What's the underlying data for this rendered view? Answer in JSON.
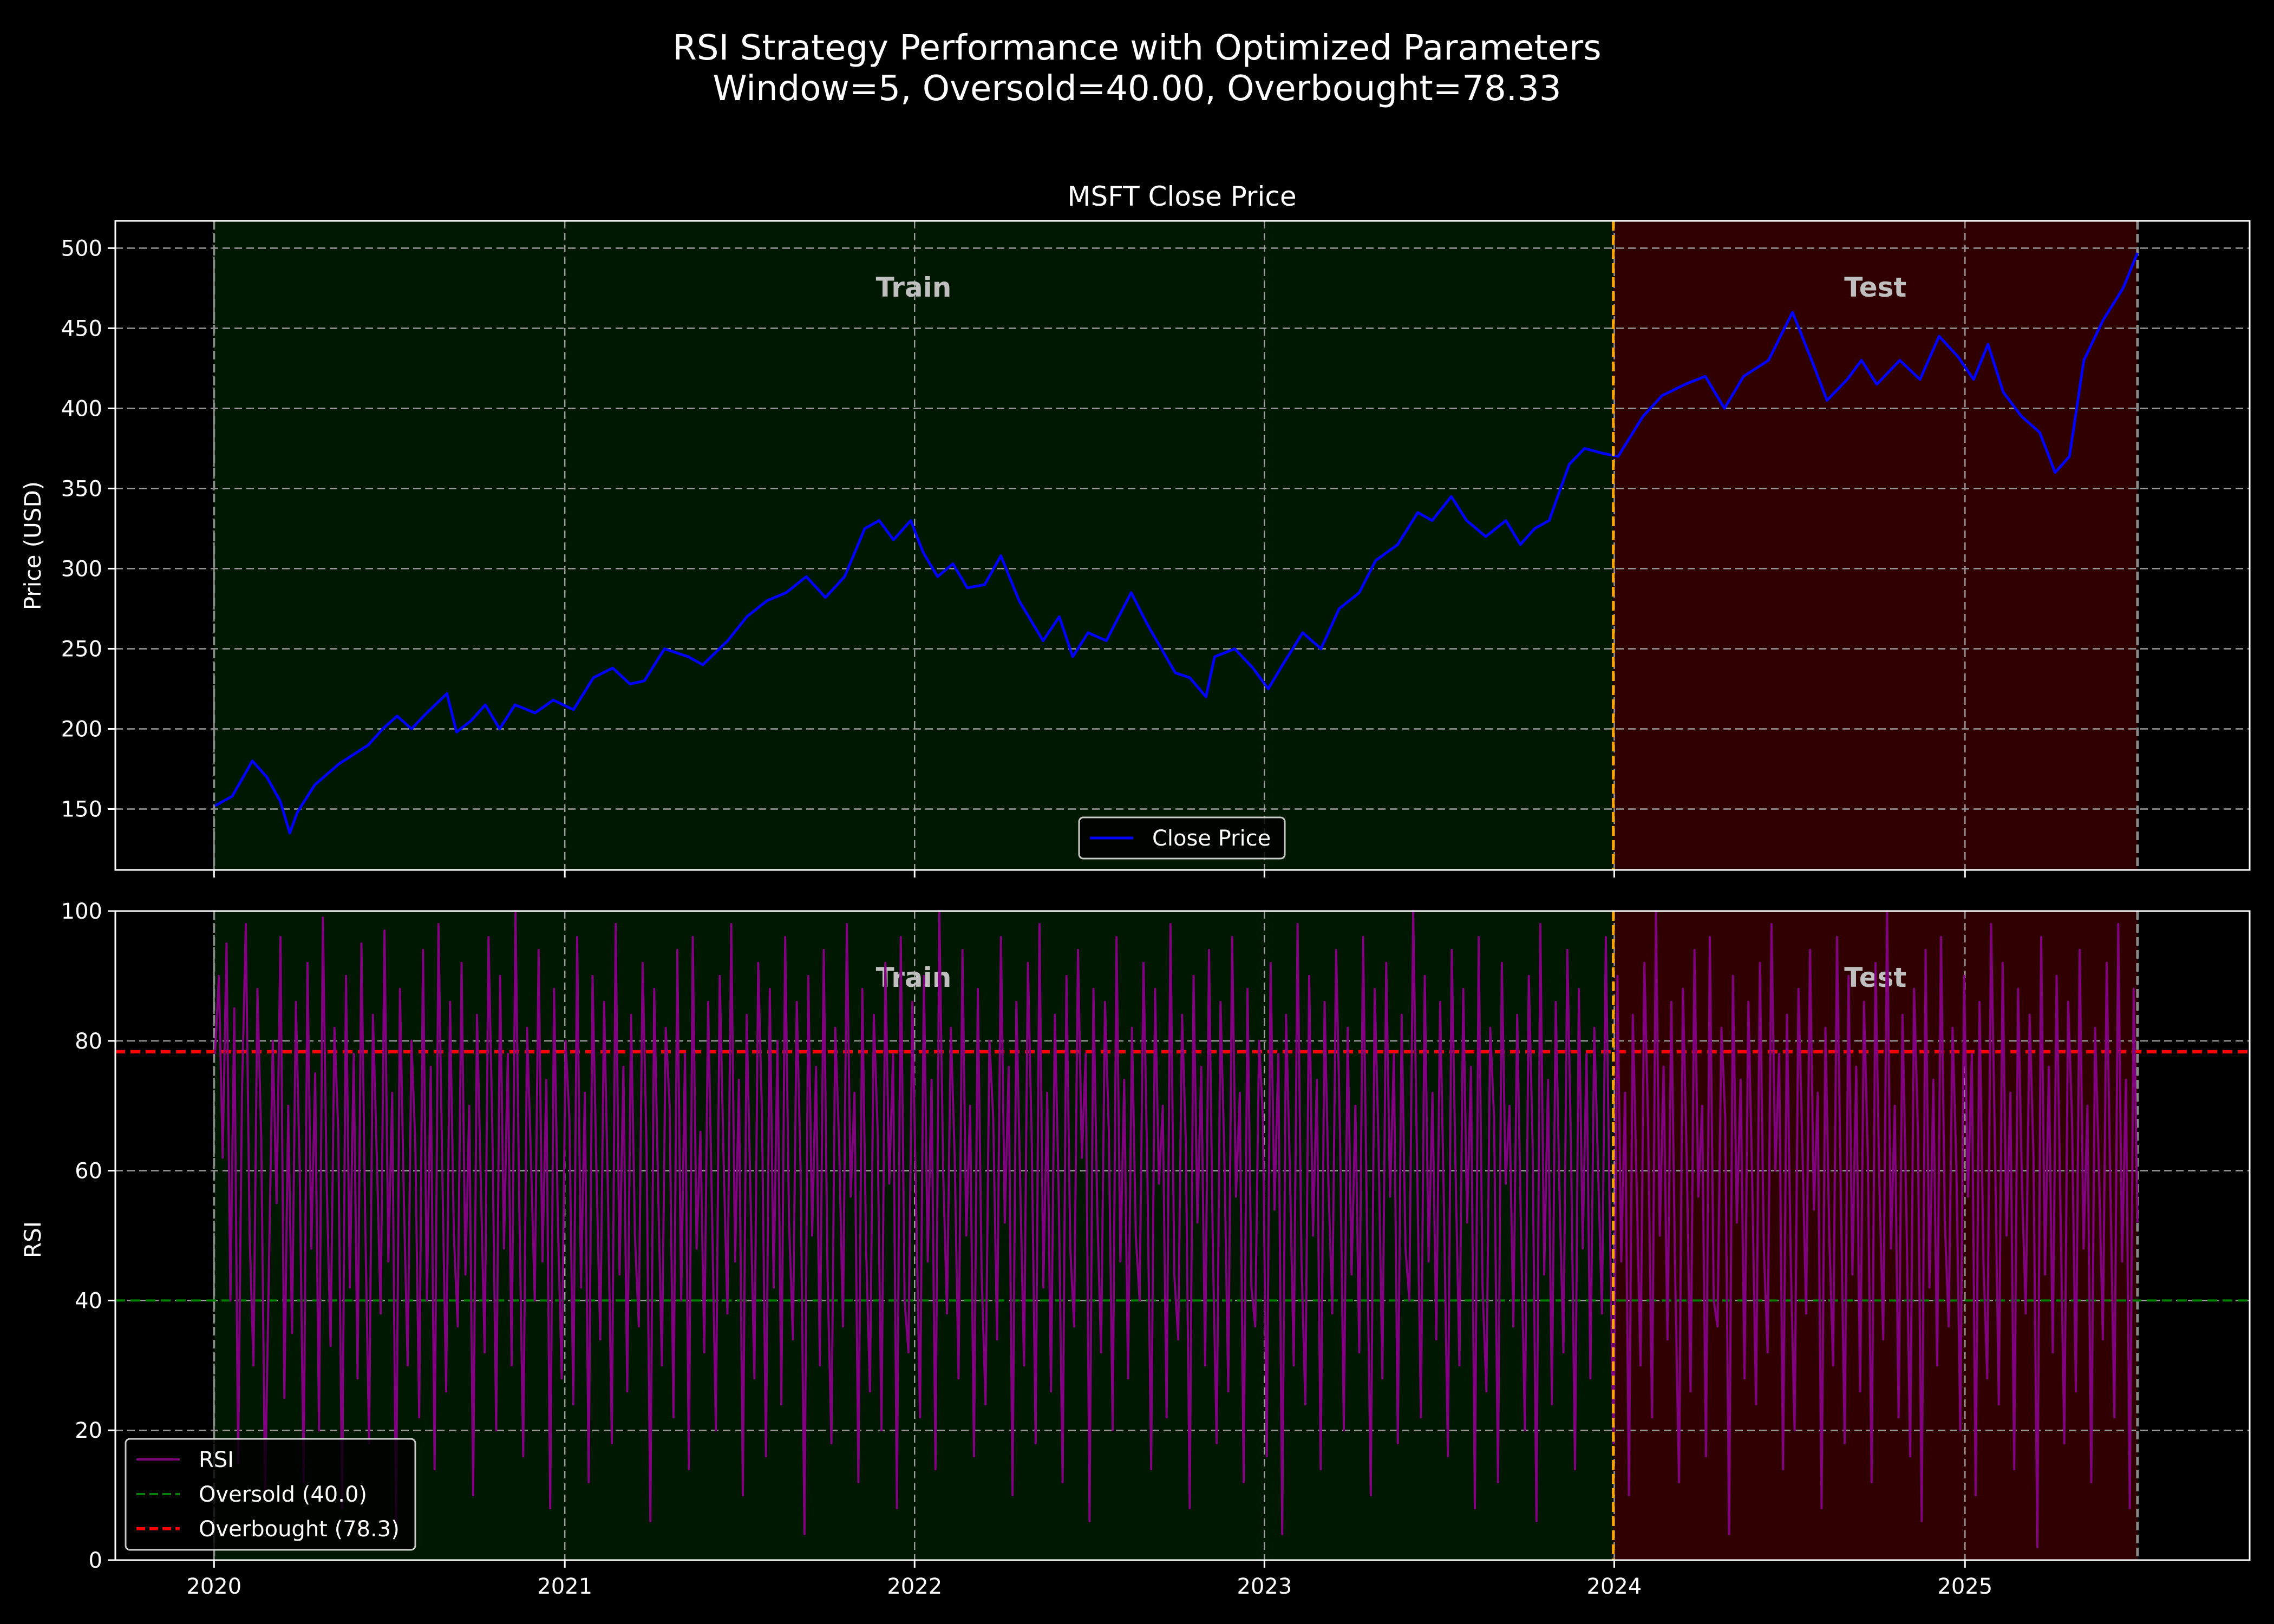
{
  "title": [
    "RSI Strategy Performance with Optimized Parameters",
    "Window=5, Oversold=40.00, Overbought=78.33"
  ],
  "colors": {
    "background": "#000000",
    "price_line": "#0000ff",
    "rsi_line": "#800080",
    "oversold": "#008000",
    "overbought": "#ff0000",
    "train_region": "#001800",
    "test_region": "#300000",
    "split_line": "#ffa500",
    "end_line": "#888888"
  },
  "chart_data": [
    {
      "type": "line",
      "title": "MSFT Close Price",
      "xlabel": "",
      "ylabel": "Price (USD)",
      "xlim": [
        "2019-09-20",
        "2025-10-25"
      ],
      "ylim": [
        112,
        517
      ],
      "yticks": [
        150,
        200,
        250,
        300,
        350,
        400,
        450,
        500
      ],
      "xticks": [
        "2020",
        "2021",
        "2022",
        "2023",
        "2024",
        "2025"
      ],
      "grid": true,
      "regions": [
        {
          "label": "Train",
          "start": "2020-01-01",
          "end": "2023-12-31"
        },
        {
          "label": "Test",
          "start": "2023-12-31",
          "end": "2025-06-30"
        }
      ],
      "legend": {
        "position": "lower-center",
        "entries": [
          "Close Price"
        ]
      },
      "series": [
        {
          "name": "Close Price",
          "points": [
            [
              "2020-01-02",
              152
            ],
            [
              "2020-01-20",
              158
            ],
            [
              "2020-02-10",
              180
            ],
            [
              "2020-02-25",
              170
            ],
            [
              "2020-03-10",
              155
            ],
            [
              "2020-03-20",
              135
            ],
            [
              "2020-03-28",
              148
            ],
            [
              "2020-04-15",
              165
            ],
            [
              "2020-05-10",
              178
            ],
            [
              "2020-06-10",
              190
            ],
            [
              "2020-06-25",
              200
            ],
            [
              "2020-07-10",
              208
            ],
            [
              "2020-07-25",
              200
            ],
            [
              "2020-08-10",
              210
            ],
            [
              "2020-08-31",
              222
            ],
            [
              "2020-09-10",
              198
            ],
            [
              "2020-09-25",
              205
            ],
            [
              "2020-10-10",
              215
            ],
            [
              "2020-10-25",
              200
            ],
            [
              "2020-11-10",
              215
            ],
            [
              "2020-12-01",
              210
            ],
            [
              "2020-12-20",
              218
            ],
            [
              "2021-01-10",
              212
            ],
            [
              "2021-01-31",
              232
            ],
            [
              "2021-02-20",
              238
            ],
            [
              "2021-03-10",
              228
            ],
            [
              "2021-03-25",
              230
            ],
            [
              "2021-04-15",
              250
            ],
            [
              "2021-05-10",
              245
            ],
            [
              "2021-05-25",
              240
            ],
            [
              "2021-06-20",
              255
            ],
            [
              "2021-07-10",
              270
            ],
            [
              "2021-07-31",
              280
            ],
            [
              "2021-08-20",
              285
            ],
            [
              "2021-09-10",
              295
            ],
            [
              "2021-09-30",
              282
            ],
            [
              "2021-10-20",
              295
            ],
            [
              "2021-11-10",
              325
            ],
            [
              "2021-11-25",
              330
            ],
            [
              "2021-12-10",
              318
            ],
            [
              "2021-12-28",
              330
            ],
            [
              "2022-01-10",
              310
            ],
            [
              "2022-01-25",
              295
            ],
            [
              "2022-02-10",
              303
            ],
            [
              "2022-02-25",
              288
            ],
            [
              "2022-03-15",
              290
            ],
            [
              "2022-04-01",
              308
            ],
            [
              "2022-04-20",
              280
            ],
            [
              "2022-05-15",
              255
            ],
            [
              "2022-06-01",
              270
            ],
            [
              "2022-06-15",
              245
            ],
            [
              "2022-07-01",
              260
            ],
            [
              "2022-07-20",
              255
            ],
            [
              "2022-08-15",
              285
            ],
            [
              "2022-09-01",
              265
            ],
            [
              "2022-09-30",
              235
            ],
            [
              "2022-10-15",
              232
            ],
            [
              "2022-11-01",
              220
            ],
            [
              "2022-11-10",
              245
            ],
            [
              "2022-12-01",
              250
            ],
            [
              "2022-12-20",
              238
            ],
            [
              "2023-01-05",
              225
            ],
            [
              "2023-01-20",
              240
            ],
            [
              "2023-02-10",
              260
            ],
            [
              "2023-03-01",
              250
            ],
            [
              "2023-03-20",
              275
            ],
            [
              "2023-04-10",
              285
            ],
            [
              "2023-04-27",
              305
            ],
            [
              "2023-05-20",
              315
            ],
            [
              "2023-06-10",
              335
            ],
            [
              "2023-06-25",
              330
            ],
            [
              "2023-07-15",
              345
            ],
            [
              "2023-07-31",
              330
            ],
            [
              "2023-08-20",
              320
            ],
            [
              "2023-09-10",
              330
            ],
            [
              "2023-09-25",
              315
            ],
            [
              "2023-10-10",
              325
            ],
            [
              "2023-10-25",
              330
            ],
            [
              "2023-11-15",
              365
            ],
            [
              "2023-12-01",
              375
            ],
            [
              "2023-12-20",
              372
            ],
            [
              "2024-01-05",
              370
            ],
            [
              "2024-01-31",
              395
            ],
            [
              "2024-02-20",
              408
            ],
            [
              "2024-03-15",
              415
            ],
            [
              "2024-04-05",
              420
            ],
            [
              "2024-04-25",
              400
            ],
            [
              "2024-05-15",
              420
            ],
            [
              "2024-06-10",
              430
            ],
            [
              "2024-07-05",
              460
            ],
            [
              "2024-07-25",
              430
            ],
            [
              "2024-08-10",
              405
            ],
            [
              "2024-08-31",
              418
            ],
            [
              "2024-09-15",
              430
            ],
            [
              "2024-10-01",
              415
            ],
            [
              "2024-10-25",
              430
            ],
            [
              "2024-11-15",
              418
            ],
            [
              "2024-12-05",
              445
            ],
            [
              "2024-12-25",
              432
            ],
            [
              "2025-01-10",
              418
            ],
            [
              "2025-01-25",
              440
            ],
            [
              "2025-02-10",
              410
            ],
            [
              "2025-03-01",
              395
            ],
            [
              "2025-03-20",
              385
            ],
            [
              "2025-04-05",
              360
            ],
            [
              "2025-04-20",
              370
            ],
            [
              "2025-05-05",
              430
            ],
            [
              "2025-05-25",
              455
            ],
            [
              "2025-06-15",
              475
            ],
            [
              "2025-06-30",
              497
            ]
          ]
        }
      ]
    },
    {
      "type": "line",
      "title": "",
      "xlabel": "",
      "ylabel": "RSI",
      "xlim": [
        "2019-09-20",
        "2025-10-25"
      ],
      "ylim": [
        0,
        100
      ],
      "yticks": [
        0,
        20,
        40,
        60,
        80,
        100
      ],
      "xticks": [
        "2020",
        "2021",
        "2022",
        "2023",
        "2024",
        "2025"
      ],
      "grid": true,
      "regions": [
        {
          "label": "Train",
          "start": "2020-01-01",
          "end": "2023-12-31"
        },
        {
          "label": "Test",
          "start": "2023-12-31",
          "end": "2025-06-30"
        }
      ],
      "legend": {
        "position": "lower-left",
        "entries": [
          "RSI",
          "Oversold (40.0)",
          "Overbought (78.3)"
        ]
      },
      "hlines": [
        {
          "name": "Oversold (40.0)",
          "y": 40.0
        },
        {
          "name": "Overbought (78.3)",
          "y": 78.33
        }
      ],
      "series": [
        {
          "name": "RSI",
          "x_start": "2020-01-02",
          "x_end": "2025-06-30",
          "values": [
            78,
            90,
            62,
            95,
            40,
            85,
            15,
            72,
            98,
            50,
            30,
            88,
            65,
            10,
            45,
            80,
            55,
            96,
            25,
            70,
            35,
            86,
            60,
            12,
            92,
            48,
            75,
            20,
            99,
            58,
            33,
            82,
            66,
            8,
            90,
            42,
            78,
            28,
            95,
            52,
            18,
            84,
            62,
            38,
            97,
            46,
            72,
            5,
            88,
            56,
            30,
            80,
            64,
            22,
            94,
            40,
            76,
            14,
            98,
            60,
            26,
            86,
            50,
            36,
            92,
            44,
            70,
            10,
            84,
            58,
            32,
            96,
            66,
            20,
            90,
            48,
            78,
            30,
            100,
            54,
            16,
            82,
            62,
            40,
            94,
            46,
            74,
            8,
            88,
            52,
            28,
            80,
            68,
            24,
            96,
            42,
            72,
            12,
            90,
            60,
            34,
            86,
            56,
            18,
            98,
            44,
            76,
            26,
            84,
            50,
            36,
            92,
            64,
            6,
            88,
            58,
            30,
            82,
            70,
            22,
            94,
            40,
            78,
            14,
            96,
            48,
            66,
            32,
            86,
            54,
            20,
            90,
            62,
            38,
            98,
            46,
            74,
            10,
            84,
            56,
            28,
            92,
            68,
            16,
            88,
            42,
            80,
            24,
            96,
            52,
            34,
            86,
            60,
            4,
            90,
            50,
            76,
            30,
            94,
            44,
            18,
            82,
            64,
            36,
            98,
            56,
            72,
            12,
            88,
            48,
            26,
            84,
            66,
            20,
            92,
            58,
            78,
            8,
            96,
            40,
            32,
            86,
            54,
            22,
            90,
            46,
            74,
            14,
            100,
            60,
            38,
            82,
            62,
            28,
            94,
            50,
            70,
            16,
            88,
            44,
            24,
            80,
            68,
            34,
            96,
            52,
            76,
            10,
            86,
            58,
            30,
            92,
            64,
            18,
            98,
            42,
            72,
            26,
            84,
            56,
            12,
            90,
            48,
            36,
            94,
            62,
            78,
            6,
            88,
            54,
            32,
            86,
            66,
            20,
            96,
            46,
            74,
            28,
            82,
            50,
            40,
            92,
            60,
            14,
            88,
            58,
            70,
            22,
            98,
            44,
            34,
            84,
            64,
            8,
            90,
            52,
            76,
            30,
            94,
            48,
            18,
            86,
            62,
            26,
            96,
            56,
            72,
            12,
            88,
            42,
            36,
            80,
            68,
            16,
            92,
            54,
            78,
            4,
            84,
            60,
            30,
            98,
            46,
            24,
            90,
            50,
            74,
            14,
            86,
            58,
            38,
            94,
            66,
            20,
            82,
            44,
            70,
            32,
            96,
            52,
            10,
            88,
            64,
            28,
            92,
            56,
            78,
            18,
            84,
            48,
            40,
            100,
            62,
            22,
            90,
            46,
            72,
            34,
            86,
            54,
            16,
            94,
            60,
            30,
            88,
            52,
            76,
            8,
            96,
            42,
            26,
            82,
            68,
            12,
            92,
            58,
            70,
            36,
            84,
            50,
            20,
            90,
            64,
            6,
            98,
            44,
            74,
            24,
            86,
            56,
            32,
            94,
            62,
            14,
            88,
            48,
            78,
            28,
            82,
            60,
            38,
            96,
            54,
            18,
            90,
            46,
            72,
            10,
            84,
            58,
            30,
            92,
            66,
            22,
            100,
            50,
            76,
            34,
            86,
            44,
            12,
            88,
            62,
            26,
            94,
            56,
            70,
            16,
            96,
            40,
            36,
            82,
            68,
            4,
            90,
            52,
            74,
            28,
            86,
            58,
            24,
            92,
            48,
            32,
            98,
            60,
            78,
            14,
            84,
            46,
            20,
            88,
            64,
            38,
            94,
            54,
            72,
            8,
            82,
            50,
            30,
            96,
            56,
            18,
            90,
            44,
            76,
            26,
            86,
            62,
            12,
            92,
            58,
            34,
            100,
            48,
            70,
            22,
            84,
            54,
            16,
            88,
            66,
            6,
            94,
            42,
            74,
            30,
            96,
            52,
            36,
            82,
            60,
            20,
            90,
            56,
            78,
            10,
            86,
            46,
            28,
            98,
            64,
            24,
            92,
            50,
            72,
            14,
            88,
            58,
            38,
            84,
            62,
            2,
            96,
            44,
            76,
            32,
            90,
            54,
            18,
            86,
            68,
            26,
            94,
            48,
            70,
            12,
            82,
            60,
            34,
            92,
            56,
            22,
            98,
            46,
            74,
            8,
            88,
            52
          ]
        }
      ]
    }
  ]
}
